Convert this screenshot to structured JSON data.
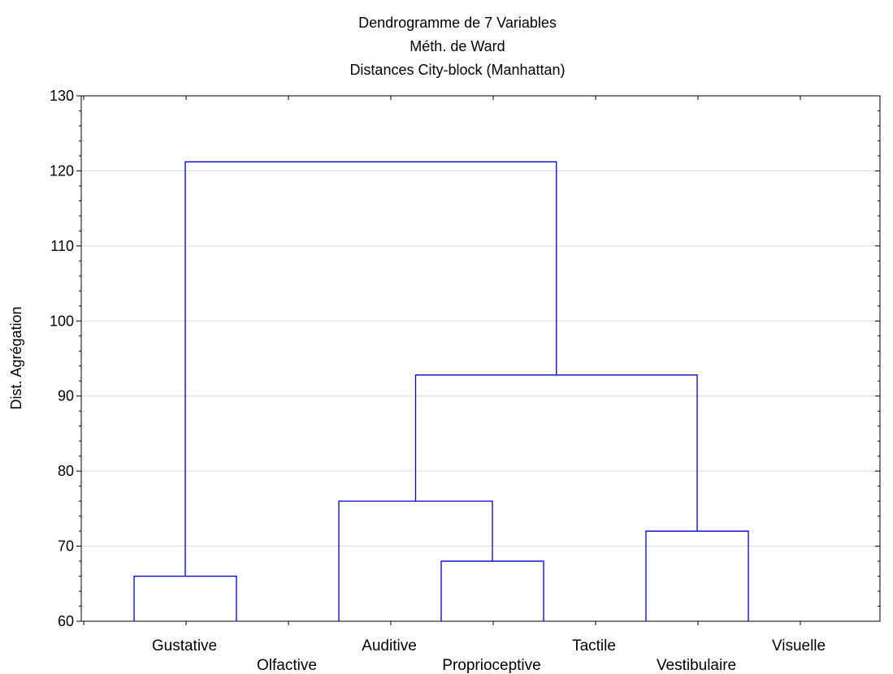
{
  "chart_data": {
    "type": "dendrogram",
    "title_lines": [
      "Dendrogramme de 7   Variables",
      "Méth. de Ward",
      "Distances City-block (Manhattan)"
    ],
    "ylabel": "Dist. Agrégation",
    "ylim": [
      60,
      130
    ],
    "yticks": [
      60,
      70,
      80,
      90,
      100,
      110,
      120,
      130
    ],
    "grid": true,
    "link_color": "#0000cc",
    "leaves": [
      "Gustative",
      "Olfactive",
      "Auditive",
      "Proprioceptive",
      "Tactile",
      "Vestibulaire",
      "Visuelle"
    ],
    "merges": [
      {
        "left": "Gustative",
        "right": "Olfactive",
        "height": 66
      },
      {
        "left": "Proprioceptive",
        "right": "Tactile",
        "height": 68
      },
      {
        "left": "Vestibulaire",
        "right": "Visuelle",
        "height": 72
      },
      {
        "left": "Auditive",
        "right": "Proprioceptive+Tactile",
        "height": 76
      },
      {
        "left": "Auditive+Proprioceptive+Tactile",
        "right": "Vestibulaire+Visuelle",
        "height": 92.8
      },
      {
        "left": "Gustative+Olfactive",
        "right": "Auditive+Proprioceptive+Tactile+Vestibulaire+Visuelle",
        "height": 121.2
      }
    ]
  }
}
